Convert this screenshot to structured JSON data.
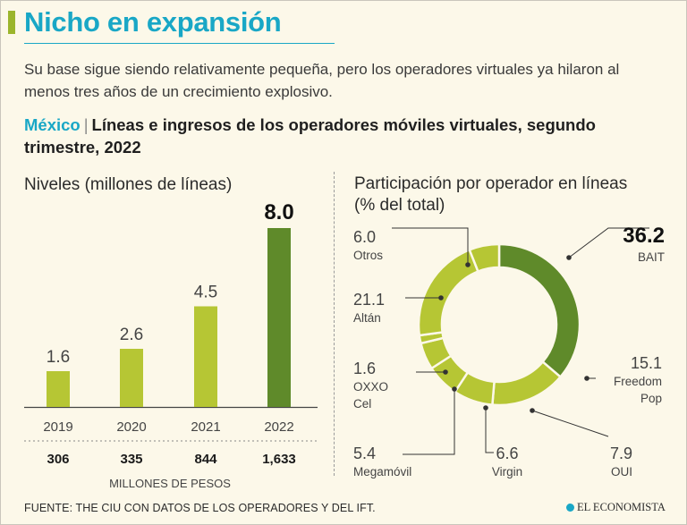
{
  "header": {
    "title": "Nicho en expansión",
    "subtitle": "Su base sigue siendo relativamente pequeña, pero los operadores virtuales ya hilaron al menos tres años de un crecimiento explosivo.",
    "country": "México",
    "separator": "|",
    "chart_title": "Líneas e ingresos de los operadores móviles virtuales, segundo trimestre, 2022"
  },
  "left_panel": {
    "title": "Niveles (millones de líneas)",
    "revenue_unit": "MILLONES DE PESOS"
  },
  "right_panel": {
    "title_line1": "Participación por operador en líneas",
    "title_line2": "(% del total)"
  },
  "chart_data": [
    {
      "type": "bar",
      "title": "Niveles (millones de líneas)",
      "categories": [
        "2019",
        "2020",
        "2021",
        "2022"
      ],
      "values": [
        1.6,
        2.6,
        4.5,
        8.0
      ],
      "value_labels": [
        "1.6",
        "2.6",
        "4.5",
        "8.0"
      ],
      "secondary_values": [
        306,
        335,
        844,
        1633
      ],
      "secondary_labels": [
        "306",
        "335",
        "844",
        "1,633"
      ],
      "secondary_label": "MILLONES DE PESOS",
      "ylim": [
        0,
        8.0
      ],
      "colors": [
        "#b6c634",
        "#b6c634",
        "#b6c634",
        "#5f8a2a"
      ]
    },
    {
      "type": "pie",
      "title": "Participación por operador en líneas (% del total)",
      "labels": [
        "BAIT",
        "Freedom Pop",
        "OUI",
        "Virgin",
        "Megamóvil",
        "OXXO Cel",
        "Altán",
        "Otros"
      ],
      "label_lines": [
        [
          "BAIT"
        ],
        [
          "Freedom",
          "Pop"
        ],
        [
          "OUI"
        ],
        [
          "Virgin"
        ],
        [
          "Megamóvil"
        ],
        [
          "OXXO",
          "Cel"
        ],
        [
          "Altán"
        ],
        [
          "Otros"
        ]
      ],
      "values": [
        36.2,
        15.1,
        7.9,
        6.6,
        5.4,
        1.6,
        21.1,
        6.0
      ],
      "value_labels": [
        "36.2",
        "15.1",
        "7.9",
        "6.6",
        "5.4",
        "1.6",
        "21.1",
        "6.0"
      ],
      "colors": [
        "#5f8a2a",
        "#b6c634",
        "#b6c634",
        "#b6c634",
        "#b6c634",
        "#b6c634",
        "#b6c634",
        "#b6c634"
      ]
    }
  ],
  "footer": {
    "source": "FUENTE: THE CIU CON DATOS DE LOS OPERADORES Y DEL IFT.",
    "logo": "EL ECONOMISTA"
  }
}
